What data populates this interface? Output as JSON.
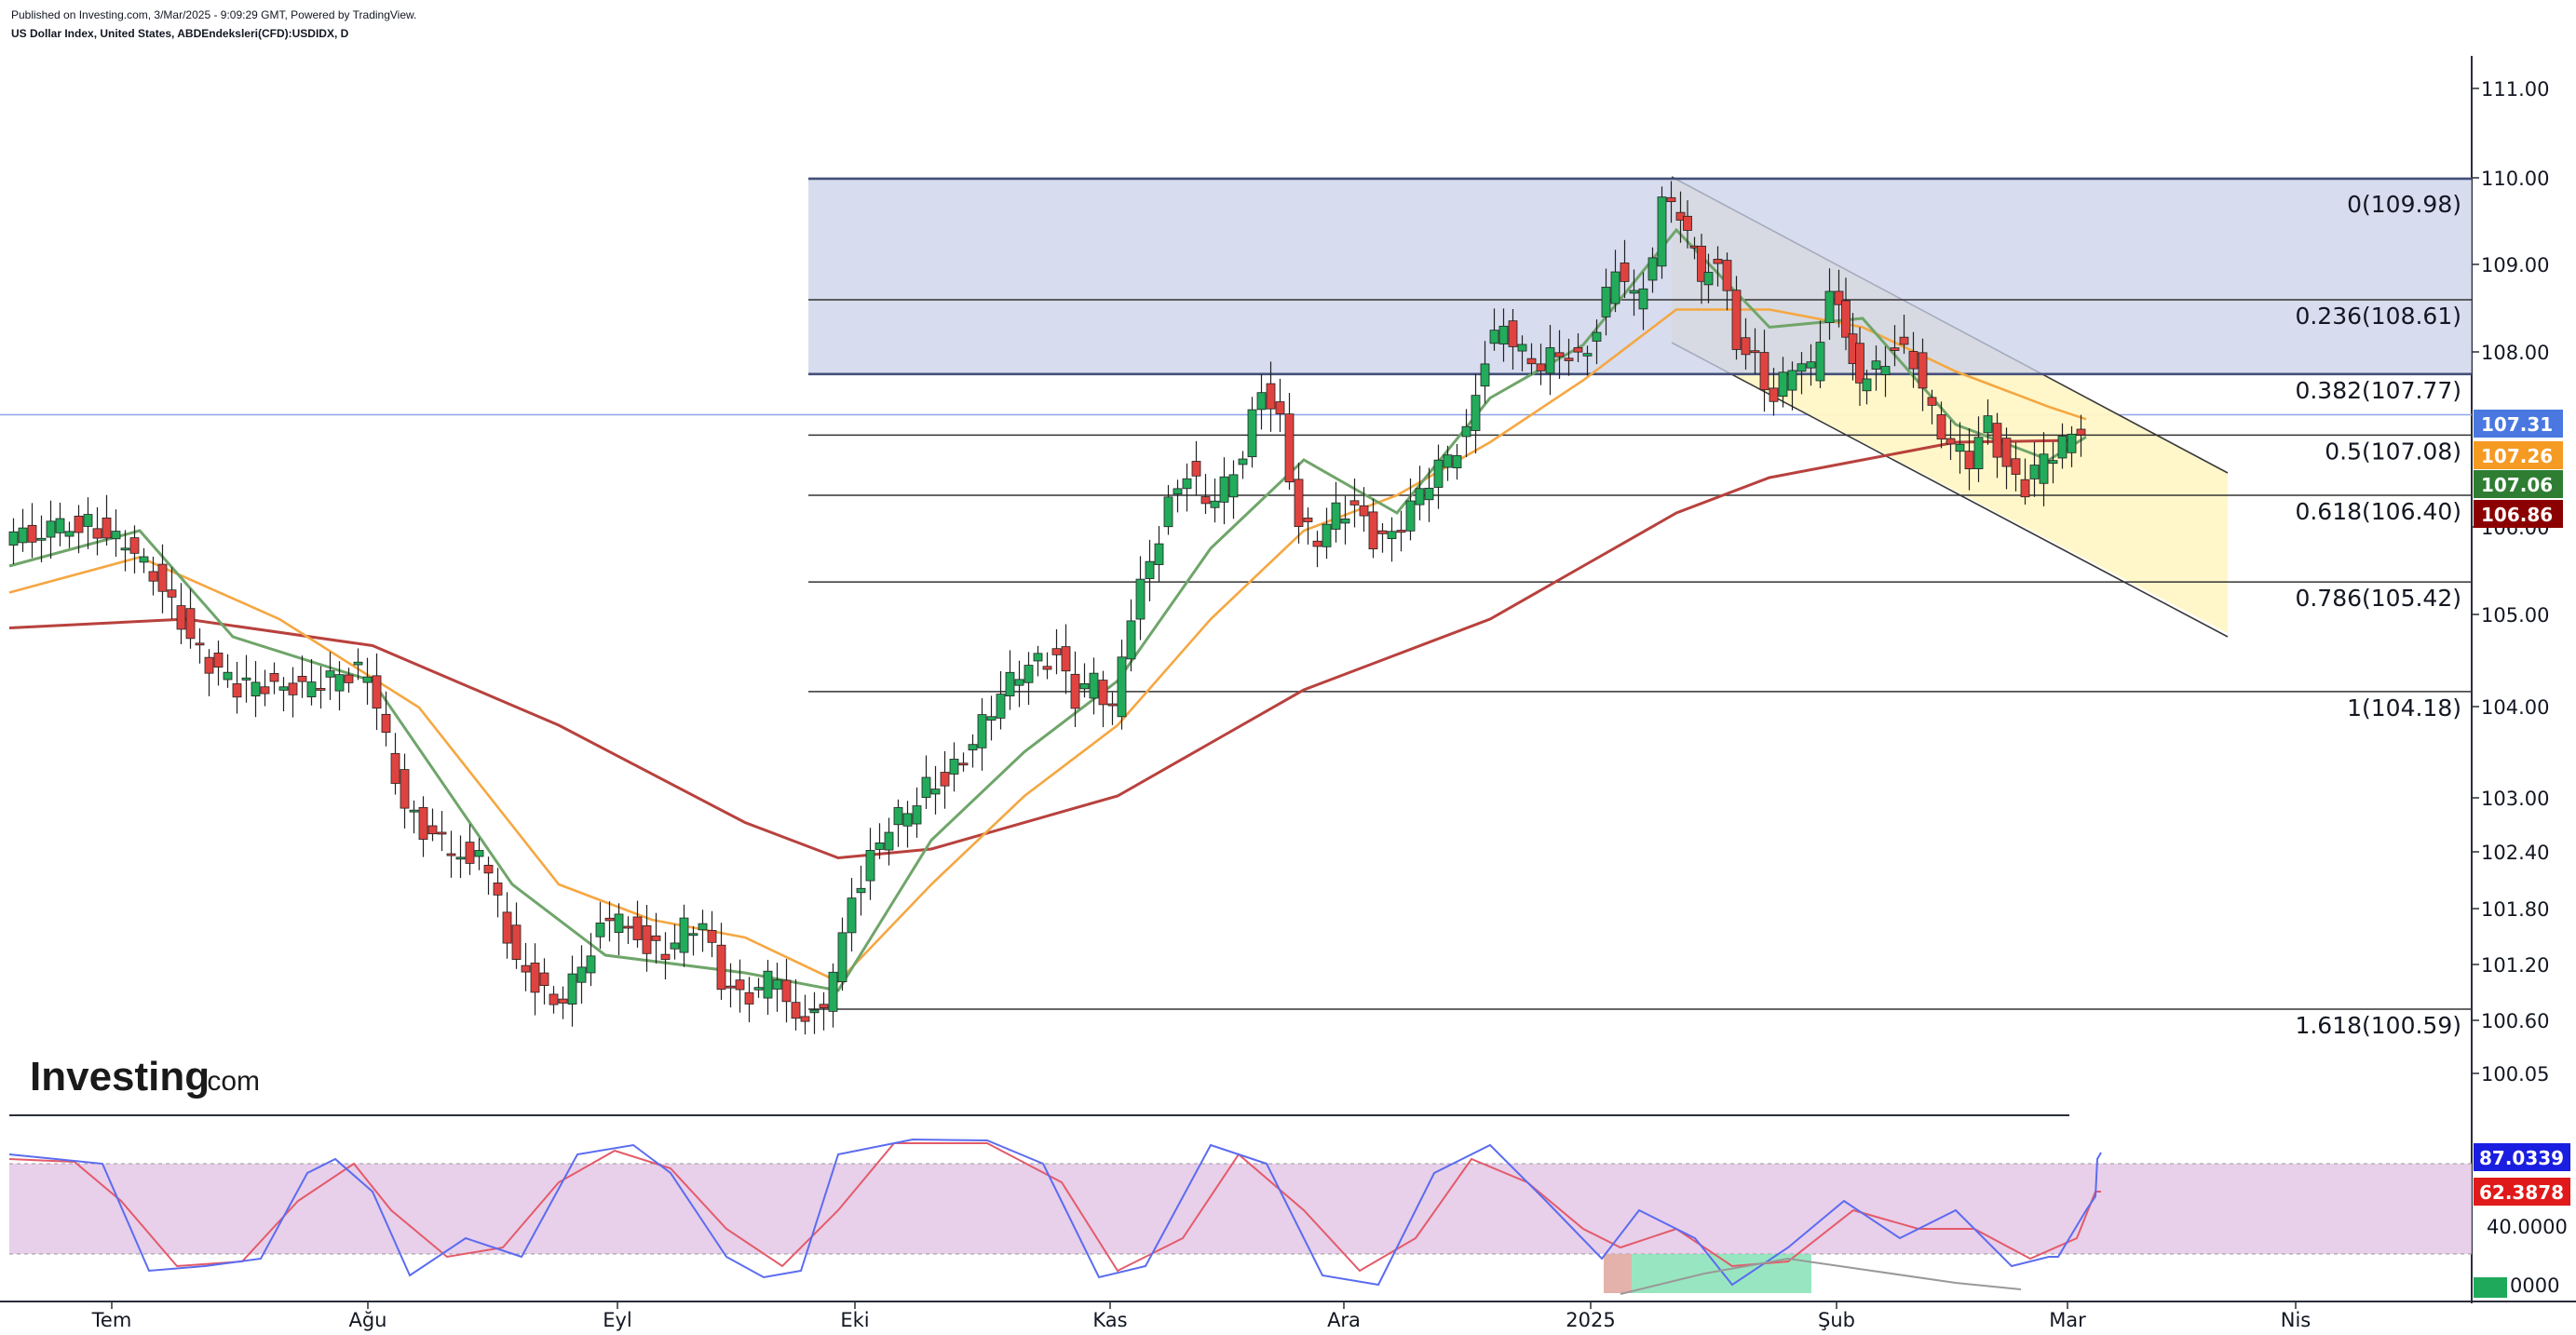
{
  "header": {
    "published": "Published on Investing.com, 3/Mar/2025 - 9:09:29 GMT, Powered by TradingView.",
    "symbol": "US Dollar Index, United States, ABDEndeksleri(CFD):USDIDX, D"
  },
  "logo": {
    "main": "Investing",
    "suffix": ".com"
  },
  "colors": {
    "up": "#22ab5a",
    "down": "#e0433f",
    "ema_fast": "#6fa56a",
    "ema_mid": "#f5a742",
    "ema_slow": "#b8413d",
    "fib_box": "#c9d0ea",
    "channel": "#fff7c7",
    "stoch_k": "#5b6cf0",
    "stoch_d": "#e35b6a",
    "stoch_band": "#e4c7e6"
  },
  "badges": [
    {
      "value": "107.31",
      "color": "#4a78e0"
    },
    {
      "value": "107.26",
      "color": "#f59a23"
    },
    {
      "value": "107.06",
      "color": "#2e7d32"
    },
    {
      "value": "106.86",
      "color": "#8b0000"
    }
  ],
  "osc_badges": [
    {
      "value": "87.0339",
      "color": "#1a1ee0"
    },
    {
      "value": "62.3878",
      "color": "#e01a1a"
    }
  ],
  "chart_data": {
    "type": "candlestick",
    "title": "US Dollar Index, United States, ABDEndeksleri(CFD):USDIDX, D",
    "y_axis_ticks": [
      "111.00",
      "110.00",
      "109.00",
      "108.00",
      "106.00",
      "105.00",
      "104.00",
      "103.00",
      "102.40",
      "101.80",
      "101.20",
      "100.60",
      "100.05"
    ],
    "x_axis_ticks": [
      "Tem",
      "Ağu",
      "Eyl",
      "Eki",
      "Kas",
      "Ara",
      "2025",
      "Şub",
      "Mar",
      "Nis"
    ],
    "fibonacci": [
      {
        "label": "0(109.98)",
        "value": 109.98
      },
      {
        "label": "0.236(108.61)",
        "value": 108.61
      },
      {
        "label": "0.382(107.77)",
        "value": 107.77
      },
      {
        "label": "0.5(107.08)",
        "value": 107.08
      },
      {
        "label": "0.618(106.40)",
        "value": 106.4
      },
      {
        "label": "0.786(105.42)",
        "value": 105.42
      },
      {
        "label": "1(104.18)",
        "value": 104.18
      },
      {
        "label": "1.618(100.59)",
        "value": 100.59
      }
    ],
    "last_close": 107.31,
    "moving_averages": [
      {
        "value": 107.26
      },
      {
        "value": 107.06
      },
      {
        "value": 106.86
      }
    ],
    "oscillator": {
      "ticks": [
        "40.0000",
        "0000"
      ],
      "k": 87.0339,
      "d": 62.3878
    }
  }
}
